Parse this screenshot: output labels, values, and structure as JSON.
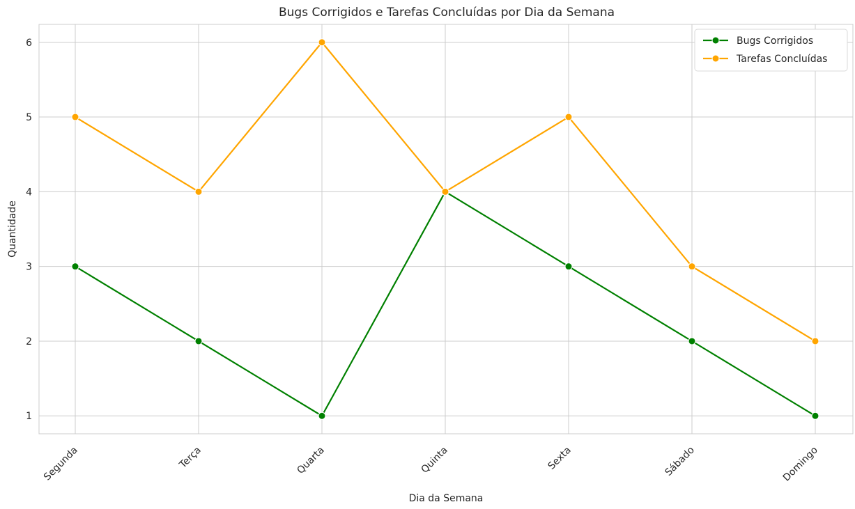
{
  "chart_data": {
    "type": "line",
    "title": "Bugs Corrigidos e Tarefas Concluídas por Dia da Semana",
    "xlabel": "Dia da Semana",
    "ylabel": "Quantidade",
    "categories": [
      "Segunda",
      "Terça",
      "Quarta",
      "Quinta",
      "Sexta",
      "Sábado",
      "Domingo"
    ],
    "y_ticks": [
      "1",
      "2",
      "3",
      "4",
      "5",
      "6"
    ],
    "ylim": [
      0.76,
      6.24
    ],
    "grid": true,
    "legend_position": "top-right",
    "series": [
      {
        "name": "Bugs Corrigidos",
        "color": "#008000",
        "values": [
          3,
          2,
          1,
          4,
          3,
          2,
          1
        ]
      },
      {
        "name": "Tarefas Concluídas",
        "color": "#FFA500",
        "values": [
          5,
          4,
          6,
          4,
          5,
          3,
          2
        ]
      }
    ]
  }
}
